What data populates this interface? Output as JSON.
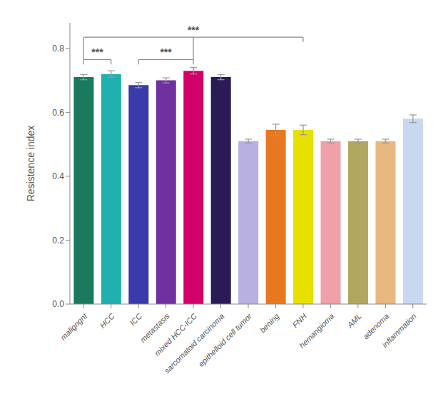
{
  "chart_data": {
    "type": "bar",
    "categories": [
      "maligngnt",
      "HCC",
      "ICC",
      "metastasis",
      "mixed HCC-ICC",
      "sarcomatoid carcinoma",
      "epithelloid cell tumor",
      "bening",
      "FNH",
      "hemangioma",
      "AML",
      "adenoma",
      "inflammation"
    ],
    "values": [
      0.71,
      0.72,
      0.685,
      0.7,
      0.73,
      0.71,
      0.51,
      0.545,
      0.545,
      0.51,
      0.51,
      0.51,
      0.58
    ],
    "errors": [
      0.008,
      0.01,
      0.008,
      0.008,
      0.01,
      0.008,
      0.006,
      0.018,
      0.015,
      0.006,
      0.006,
      0.006,
      0.012
    ],
    "colors": [
      "#1a7a5e",
      "#20b0b0",
      "#3a3aaa",
      "#7030a0",
      "#d4006a",
      "#2a1a55",
      "#b8b0e0",
      "#e87820",
      "#e8e000",
      "#f0a0a8",
      "#b0a860",
      "#e8b880",
      "#c8d8f0"
    ],
    "ylabel": "Resistence index",
    "ylim": [
      0,
      0.88
    ],
    "yticks": [
      {
        "value": 0.0,
        "label": "0.0"
      },
      0.2,
      0.4,
      0.6,
      0.8
    ],
    "grid": false,
    "annotations": [
      {
        "type": "bracket",
        "label": "***",
        "x1": "maligngnt",
        "x2": "HCC",
        "y": 0.765
      },
      {
        "type": "bracket",
        "label": "***",
        "x1": "ICC",
        "x2": "mixed HCC-ICC",
        "y": 0.765
      },
      {
        "type": "bracket",
        "label": "***",
        "x1": "maligngnt",
        "x2": "FNH",
        "y": 0.835,
        "joins": [
          {
            "x": "maligngnt",
            "y": 0.765
          },
          {
            "x": "mixed HCC-ICC",
            "y": 0.765
          }
        ]
      }
    ]
  }
}
